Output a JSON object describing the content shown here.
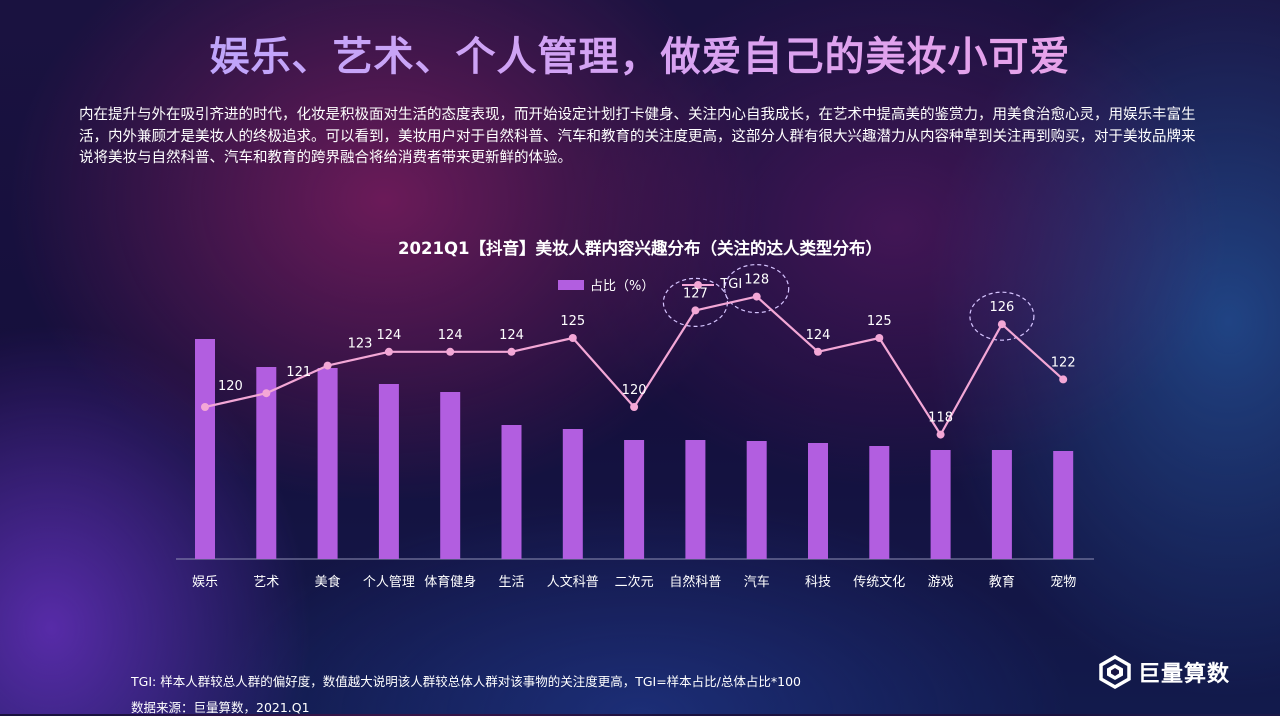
{
  "page": {
    "title": "娱乐、艺术、个人管理，做爱自己的美妆小可爱",
    "description": "内在提升与外在吸引齐进的时代，化妆是积极面对生活的态度表现，而开始设定计划打卡健身、关注内心自我成长，在艺术中提高美的鉴赏力，用美食治愈心灵，用娱乐丰富生活，内外兼顾才是美妆人的终极追求。可以看到，美妆用户对于自然科普、汽车和教育的关注度更高，这部分人群有很大兴趣潜力从内容种草到关注再到购买，对于美妆品牌来说将美妆与自然科普、汽车和教育的跨界融合将给消费者带来更新鲜的体验。",
    "footnote_tgi": "TGI: 样本人群较总人群的偏好度，数值越大说明该人群较总体人群对该事物的关注度更高，TGI=样本占比/总体占比*100",
    "footnote_source": "数据来源：巨量算数，2021.Q1",
    "logo_text": "巨量算数"
  },
  "chart_data": {
    "type": "bar",
    "title": "2021Q1【抖音】美妆人群内容兴趣分布（关注的达人类型分布）",
    "categories": [
      "娱乐",
      "艺术",
      "美食",
      "个人管理",
      "体育健身",
      "生活",
      "人文科普",
      "二次元",
      "自然科普",
      "汽车",
      "科技",
      "传统文化",
      "游戏",
      "教育",
      "宠物"
    ],
    "series": [
      {
        "name": "占比（%）",
        "type": "bar",
        "color": "#b25ee0",
        "values": [
          22.0,
          19.2,
          19.1,
          17.5,
          16.7,
          13.4,
          13.0,
          11.9,
          11.9,
          11.8,
          11.6,
          11.3,
          10.9,
          10.9,
          10.8
        ]
      },
      {
        "name": "TGI",
        "type": "line",
        "color": "#f3a7d6",
        "values": [
          120,
          121,
          123,
          124,
          124,
          124,
          125,
          120,
          127,
          128,
          124,
          125,
          118,
          126,
          122
        ]
      }
    ],
    "highlighted": [
      "自然科普",
      "汽车",
      "教育"
    ],
    "ylim_bar": [
      0,
      22
    ],
    "ylim_tgi": [
      115,
      129
    ],
    "legend_position": "top-center",
    "grid": false
  }
}
